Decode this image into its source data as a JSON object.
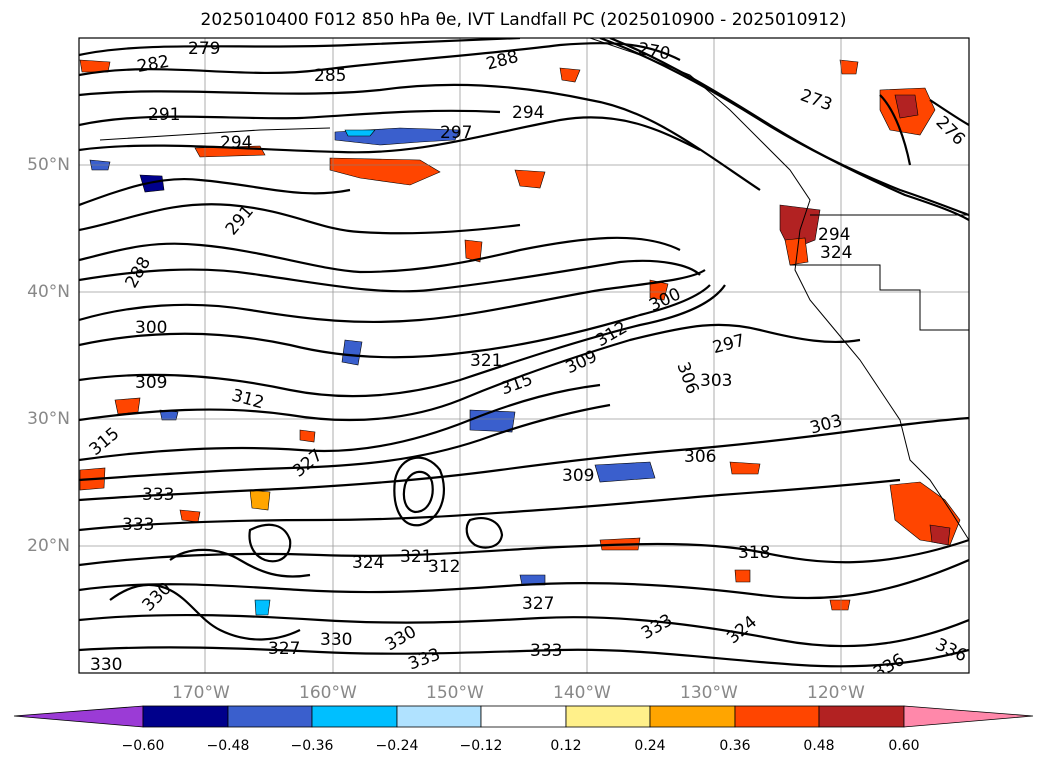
{
  "title": "2025010400 F012 850 hPa θe, IVT Landfall PC (2025010900 - 2025010912)",
  "map": {
    "lat_labels": [
      "50°N",
      "40°N",
      "30°N",
      "20°N"
    ],
    "lon_labels": [
      "170°W",
      "160°W",
      "150°W",
      "140°W",
      "130°W",
      "120°W"
    ],
    "contour_labels": [
      "279",
      "282",
      "285",
      "288",
      "291",
      "294",
      "297",
      "300",
      "303",
      "306",
      "309",
      "312",
      "315",
      "318",
      "321",
      "324",
      "327",
      "330",
      "333",
      "336",
      "270",
      "273",
      "276"
    ]
  },
  "colorbar": {
    "ticks": [
      "−0.60",
      "−0.48",
      "−0.36",
      "−0.24",
      "−0.12",
      "0.12",
      "0.24",
      "0.36",
      "0.48",
      "0.60"
    ],
    "colors": [
      "#9b3bd6",
      "#00008b",
      "#3a5fcd",
      "#00bfff",
      "#b0e2ff",
      "#ffffff",
      "#fff08a",
      "#ffa500",
      "#ff4500",
      "#b22222",
      "#ff88aa"
    ]
  }
}
